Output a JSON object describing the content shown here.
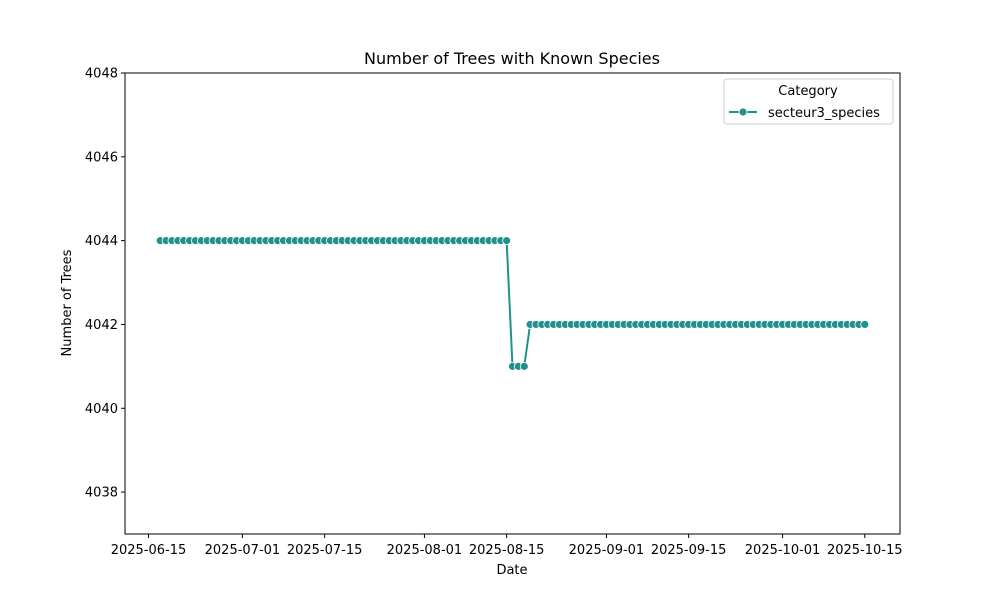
{
  "chart_data": {
    "type": "line",
    "title": "Number of Trees with Known Species",
    "xlabel": "Date",
    "ylabel": "Number of Trees",
    "xlim": [
      "2025-06-11",
      "2025-10-21"
    ],
    "ylim": [
      4037,
      4048
    ],
    "x_ticks": [
      "2025-06-15",
      "2025-07-01",
      "2025-07-15",
      "2025-08-01",
      "2025-08-15",
      "2025-09-01",
      "2025-09-15",
      "2025-10-01",
      "2025-10-15"
    ],
    "y_ticks": [
      4038,
      4040,
      4042,
      4044,
      4046,
      4048
    ],
    "grid": false,
    "legend": {
      "title": "Category",
      "placement": "top-right"
    },
    "series": [
      {
        "name": "secteur3_species",
        "color": "#21918c",
        "marker": "circle",
        "x": [
          "2025-06-17",
          "2025-06-18",
          "2025-06-19",
          "2025-06-20",
          "2025-06-21",
          "2025-06-22",
          "2025-06-23",
          "2025-06-24",
          "2025-06-25",
          "2025-06-26",
          "2025-06-27",
          "2025-06-28",
          "2025-06-29",
          "2025-06-30",
          "2025-07-01",
          "2025-07-02",
          "2025-07-03",
          "2025-07-04",
          "2025-07-05",
          "2025-07-06",
          "2025-07-07",
          "2025-07-08",
          "2025-07-09",
          "2025-07-10",
          "2025-07-11",
          "2025-07-12",
          "2025-07-13",
          "2025-07-14",
          "2025-07-15",
          "2025-07-16",
          "2025-07-17",
          "2025-07-18",
          "2025-07-19",
          "2025-07-20",
          "2025-07-21",
          "2025-07-22",
          "2025-07-23",
          "2025-07-24",
          "2025-07-25",
          "2025-07-26",
          "2025-07-27",
          "2025-07-28",
          "2025-07-29",
          "2025-07-30",
          "2025-07-31",
          "2025-08-01",
          "2025-08-02",
          "2025-08-03",
          "2025-08-04",
          "2025-08-05",
          "2025-08-06",
          "2025-08-07",
          "2025-08-08",
          "2025-08-09",
          "2025-08-10",
          "2025-08-11",
          "2025-08-12",
          "2025-08-13",
          "2025-08-14",
          "2025-08-15",
          "2025-08-16",
          "2025-08-17",
          "2025-08-18",
          "2025-08-19",
          "2025-08-20",
          "2025-08-21",
          "2025-08-22",
          "2025-08-23",
          "2025-08-24",
          "2025-08-25",
          "2025-08-26",
          "2025-08-27",
          "2025-08-28",
          "2025-08-29",
          "2025-08-30",
          "2025-08-31",
          "2025-09-01",
          "2025-09-02",
          "2025-09-03",
          "2025-09-04",
          "2025-09-05",
          "2025-09-06",
          "2025-09-07",
          "2025-09-08",
          "2025-09-09",
          "2025-09-10",
          "2025-09-11",
          "2025-09-12",
          "2025-09-13",
          "2025-09-14",
          "2025-09-15",
          "2025-09-16",
          "2025-09-17",
          "2025-09-18",
          "2025-09-19",
          "2025-09-20",
          "2025-09-21",
          "2025-09-22",
          "2025-09-23",
          "2025-09-24",
          "2025-09-25",
          "2025-09-26",
          "2025-09-27",
          "2025-09-28",
          "2025-09-29",
          "2025-09-30",
          "2025-10-01",
          "2025-10-02",
          "2025-10-03",
          "2025-10-04",
          "2025-10-05",
          "2025-10-06",
          "2025-10-07",
          "2025-10-08",
          "2025-10-09",
          "2025-10-10",
          "2025-10-11",
          "2025-10-12",
          "2025-10-13",
          "2025-10-14",
          "2025-10-15"
        ],
        "y": [
          4044,
          4044,
          4044,
          4044,
          4044,
          4044,
          4044,
          4044,
          4044,
          4044,
          4044,
          4044,
          4044,
          4044,
          4044,
          4044,
          4044,
          4044,
          4044,
          4044,
          4044,
          4044,
          4044,
          4044,
          4044,
          4044,
          4044,
          4044,
          4044,
          4044,
          4044,
          4044,
          4044,
          4044,
          4044,
          4044,
          4044,
          4044,
          4044,
          4044,
          4044,
          4044,
          4044,
          4044,
          4044,
          4044,
          4044,
          4044,
          4044,
          4044,
          4044,
          4044,
          4044,
          4044,
          4044,
          4044,
          4044,
          4044,
          4044,
          4044,
          4041,
          4041,
          4041,
          4042,
          4042,
          4042,
          4042,
          4042,
          4042,
          4042,
          4042,
          4042,
          4042,
          4042,
          4042,
          4042,
          4042,
          4042,
          4042,
          4042,
          4042,
          4042,
          4042,
          4042,
          4042,
          4042,
          4042,
          4042,
          4042,
          4042,
          4042,
          4042,
          4042,
          4042,
          4042,
          4042,
          4042,
          4042,
          4042,
          4042,
          4042,
          4042,
          4042,
          4042,
          4042,
          4042,
          4042,
          4042,
          4042,
          4042,
          4042,
          4042,
          4042,
          4042,
          4042,
          4042,
          4042,
          4042,
          4042,
          4042,
          4042
        ]
      }
    ]
  }
}
